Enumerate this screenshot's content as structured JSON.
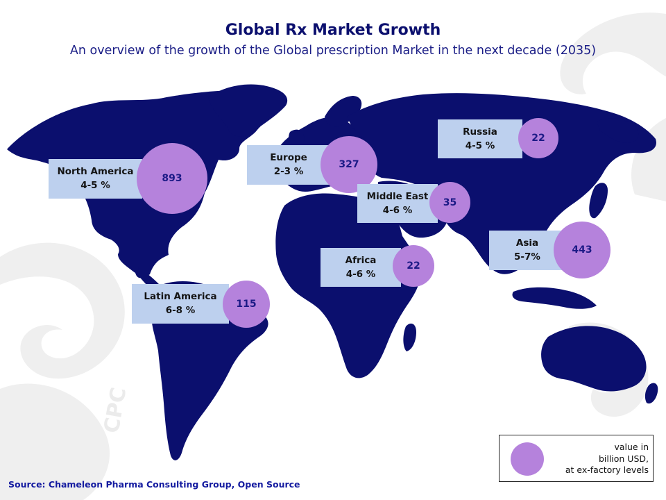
{
  "header": {
    "title": "Global Rx Market Growth",
    "subtitle": "An overview of the growth of the Global prescription Market in the next decade (2035)"
  },
  "regions": [
    {
      "name": "North America",
      "growth": "4-5 %",
      "value": "893"
    },
    {
      "name": "Europe",
      "growth": "2-3 %",
      "value": "327"
    },
    {
      "name": "Russia",
      "growth": "4-5 %",
      "value": "22"
    },
    {
      "name": "Middle East",
      "growth": "4-6 %",
      "value": "35"
    },
    {
      "name": "Asia",
      "growth": "5-7%",
      "value": "443"
    },
    {
      "name": "Africa",
      "growth": "4-6 %",
      "value": "22"
    },
    {
      "name": "Latin America",
      "growth": "6-8 %",
      "value": "115"
    }
  ],
  "legend": {
    "line1": "value in",
    "line2": "billion USD,",
    "line3": "at ex-factory levels"
  },
  "footer": {
    "source": "Source:  Chameleon Pharma Consulting Group, Open Source"
  },
  "watermark": {
    "text": "CPC"
  },
  "colors": {
    "landmass": "#0b0f6e",
    "bubble": "#b582dc",
    "label_box": "#bdd0ee",
    "title": "#0b0f6e",
    "source": "#141ba0",
    "watermark": "#efefef"
  }
}
